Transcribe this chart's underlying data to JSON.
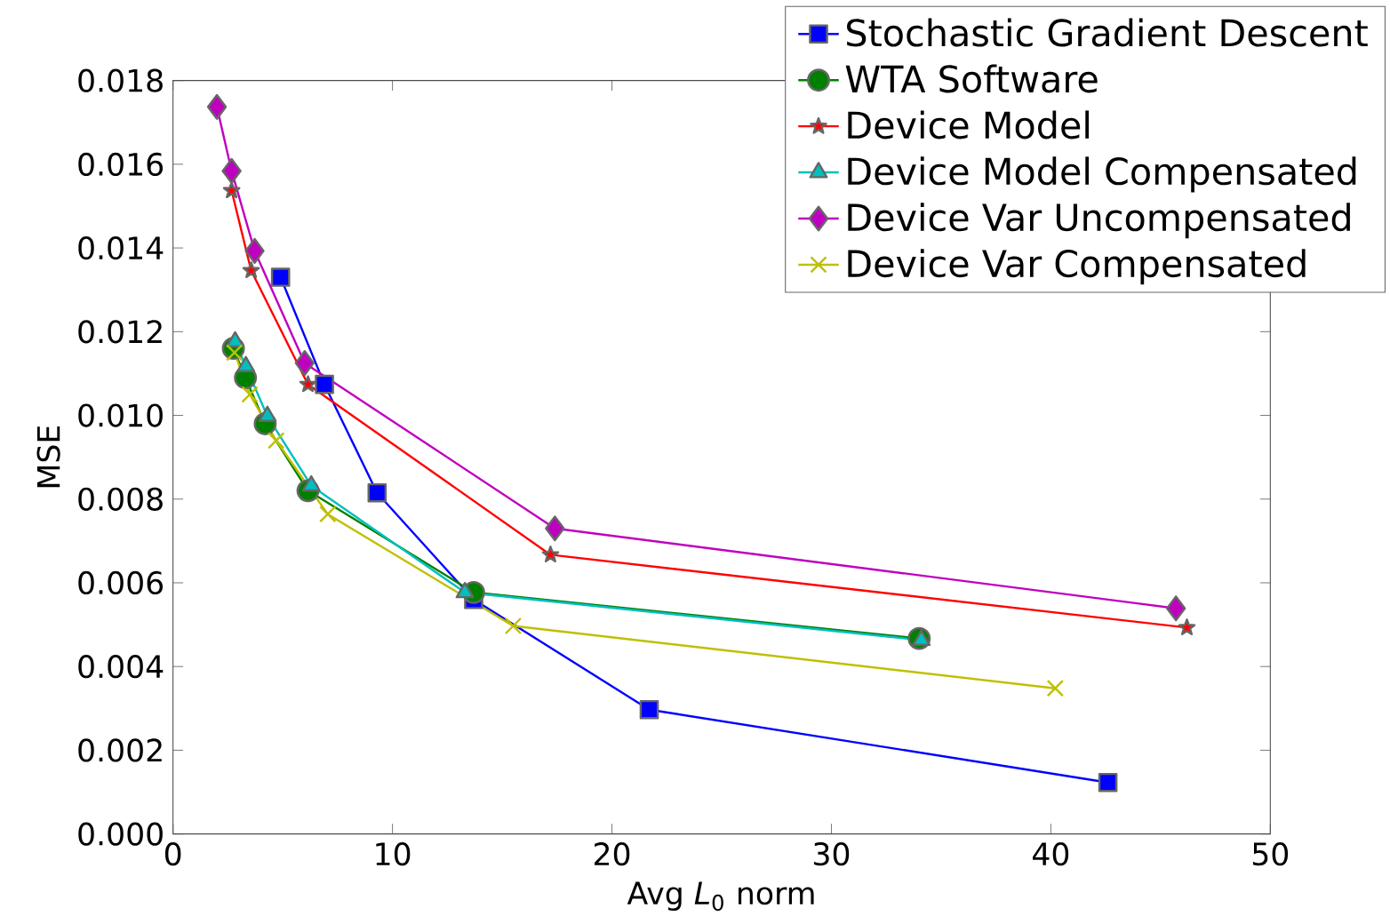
{
  "chart_data": {
    "type": "line",
    "xlabel": "Avg *L*$_{0}$ norm",
    "ylabel": "MSE",
    "xlim": [
      0,
      50
    ],
    "ylim": [
      0,
      0.018
    ],
    "xticks": [
      0,
      10,
      20,
      30,
      40,
      50
    ],
    "yticks": [
      {
        "value": 0,
        "label": "0.000"
      },
      {
        "value": 0.002,
        "label": "0.002"
      },
      {
        "value": 0.004,
        "label": "0.004"
      },
      {
        "value": 0.006,
        "label": "0.006"
      },
      {
        "value": 0.008,
        "label": "0.008"
      },
      {
        "value": 0.01,
        "label": "0.010"
      },
      {
        "value": 0.012,
        "label": "0.012"
      },
      {
        "value": 0.014,
        "label": "0.014"
      },
      {
        "value": 0.016,
        "label": "0.016"
      },
      {
        "value": 0.018,
        "label": "0.018"
      }
    ],
    "legend": "top right",
    "line_style": "solid",
    "series": [
      {
        "name": "Stochastic Gradient Descent",
        "color": "#0000ff",
        "marker": "square",
        "x": [
          4.9,
          6.9,
          9.3,
          13.7,
          21.7,
          42.6
        ],
        "values": [
          0.0133,
          0.01074,
          0.00815,
          0.0056,
          0.00297,
          0.00123
        ]
      },
      {
        "name": "WTA Software",
        "color": "#008000",
        "marker": "circle",
        "x": [
          2.75,
          3.3,
          4.2,
          6.15,
          13.7,
          34.0
        ],
        "values": [
          0.0116,
          0.0109,
          0.0098,
          0.0082,
          0.00577,
          0.00467
        ]
      },
      {
        "name": "Device Model",
        "color": "#ff0000",
        "marker": "star",
        "x": [
          2.67,
          3.56,
          6.15,
          17.2,
          46.2
        ],
        "values": [
          0.01537,
          0.01346,
          0.01074,
          0.00667,
          0.00493
        ]
      },
      {
        "name": "Device Model Compensated",
        "color": "#00bfbf",
        "marker": "triangle",
        "x": [
          2.83,
          3.32,
          4.3,
          6.3,
          13.3,
          34.1
        ],
        "values": [
          0.01176,
          0.01117,
          0.00998,
          0.00832,
          0.00577,
          0.00463
        ]
      },
      {
        "name": "Device Var Uncompensated",
        "color": "#bf00bf",
        "marker": "diamond",
        "x": [
          2.0,
          2.67,
          3.72,
          6.0,
          17.4,
          45.7
        ],
        "values": [
          0.01737,
          0.01584,
          0.01393,
          0.01125,
          0.0073,
          0.00539
        ]
      },
      {
        "name": "Device Var Compensated",
        "color": "#bfbf00",
        "marker": "cross",
        "x": [
          2.8,
          3.5,
          4.7,
          7.05,
          15.5,
          40.2
        ],
        "values": [
          0.0115,
          0.0105,
          0.0094,
          0.00764,
          0.00497,
          0.00348
        ]
      }
    ]
  }
}
